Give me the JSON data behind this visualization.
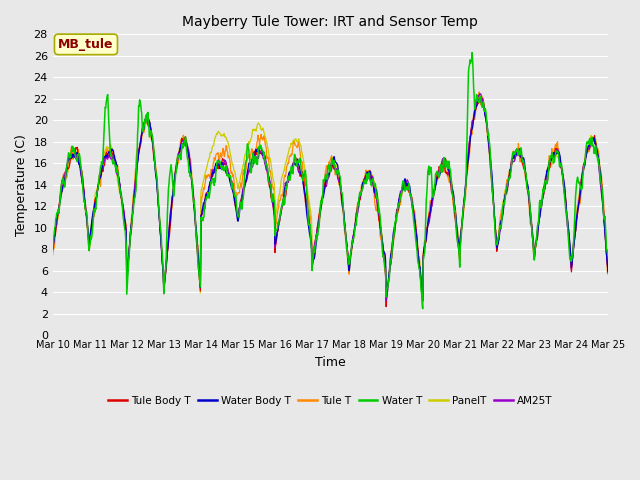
{
  "title": "Mayberry Tule Tower: IRT and Sensor Temp",
  "xlabel": "Time",
  "ylabel": "Temperature (C)",
  "ylim": [
    0,
    28
  ],
  "yticks": [
    0,
    2,
    4,
    6,
    8,
    10,
    12,
    14,
    16,
    18,
    20,
    22,
    24,
    26,
    28
  ],
  "xtick_labels": [
    "Mar 10",
    "Mar 11",
    "Mar 12",
    "Mar 13",
    "Mar 14",
    "Mar 15",
    "Mar 16",
    "Mar 17",
    "Mar 18",
    "Mar 19",
    "Mar 20",
    "Mar 21",
    "Mar 22",
    "Mar 23",
    "Mar 24",
    "Mar 25"
  ],
  "annotation_label": "MB_tule",
  "annotation_color": "#8B0000",
  "annotation_bg": "#ffffcc",
  "annotation_border": "#aaaa00",
  "series": [
    {
      "label": "Tule Body T",
      "color": "#dd0000"
    },
    {
      "label": "Water Body T",
      "color": "#0000cc"
    },
    {
      "label": "Tule T",
      "color": "#ff8800"
    },
    {
      "label": "Water T",
      "color": "#00cc00"
    },
    {
      "label": "PanelT",
      "color": "#cccc00"
    },
    {
      "label": "AM25T",
      "color": "#9900cc"
    }
  ],
  "bg_color": "#e8e8e8",
  "fig_color": "#e8e8e8",
  "grid_color": "#ffffff",
  "n_points": 1080,
  "n_days": 15
}
